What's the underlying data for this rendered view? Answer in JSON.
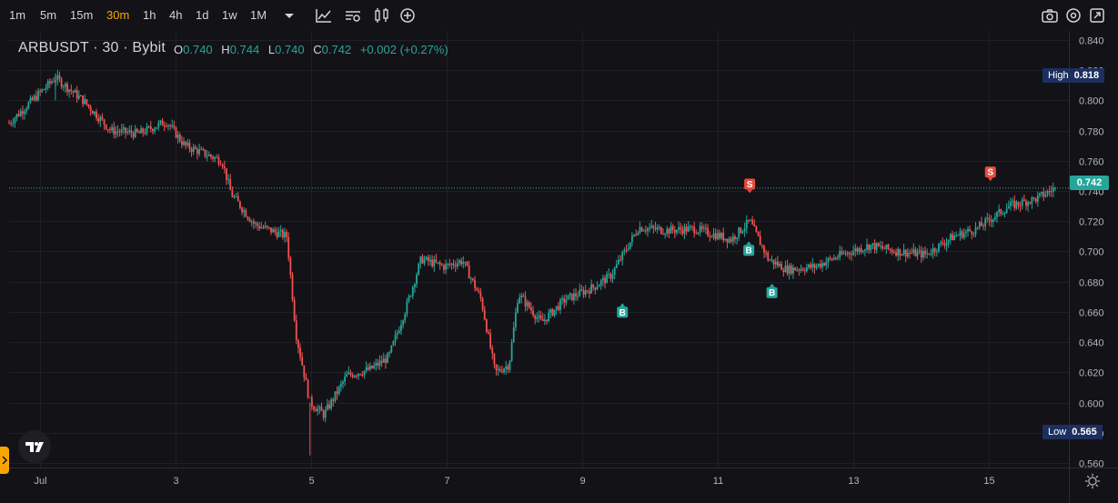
{
  "toolbar": {
    "timeframes": [
      "1m",
      "5m",
      "15m",
      "30m",
      "1h",
      "4h",
      "1d",
      "1w",
      "1M"
    ],
    "active_timeframe": "30m",
    "icons": [
      "dropdown-arrow-icon",
      "indicators-icon",
      "chart-settings-icon",
      "candles-icon",
      "add-icon",
      "camera-icon",
      "settings-icon",
      "fullscreen-icon"
    ]
  },
  "symbol": {
    "title": "ARBUSDT · 30 · Bybit"
  },
  "ohlc": {
    "o_label": "O",
    "o": "0.740",
    "h_label": "H",
    "h": "0.744",
    "l_label": "L",
    "l": "0.740",
    "c_label": "C",
    "c": "0.742",
    "change": "+0.002 (+0.27%)"
  },
  "badges": {
    "high_label": "High",
    "high_value": "0.818",
    "low_label": "Low",
    "low_value": "0.565",
    "last_value": "0.742"
  },
  "colors": {
    "up": "#26a69a",
    "down": "#ef5350",
    "accent": "#f7a600",
    "badge": "#1c2f5e"
  },
  "chart_data": {
    "type": "candlestick",
    "title": "ARBUSDT · 30 · Bybit",
    "x_ticks": [
      "Jul",
      "3",
      "5",
      "7",
      "9",
      "11",
      "13",
      "15"
    ],
    "y_ticks": [
      "0.840",
      "0.820",
      "0.800",
      "0.780",
      "0.760",
      "0.740",
      "0.720",
      "0.700",
      "0.680",
      "0.660",
      "0.640",
      "0.620",
      "0.600",
      "0.580",
      "0.560"
    ],
    "ylim": [
      0.557,
      0.846
    ],
    "grid": true,
    "high": 0.818,
    "low": 0.565,
    "last": 0.742,
    "price_path": [
      {
        "t": 0.0,
        "p": 0.785
      },
      {
        "t": 1.0,
        "p": 0.815
      },
      {
        "t": 1.6,
        "p": 0.8
      },
      {
        "t": 2.2,
        "p": 0.78
      },
      {
        "t": 2.8,
        "p": 0.778
      },
      {
        "t": 3.4,
        "p": 0.786
      },
      {
        "t": 3.8,
        "p": 0.77
      },
      {
        "t": 4.6,
        "p": 0.76
      },
      {
        "t": 4.8,
        "p": 0.738
      },
      {
        "t": 5.3,
        "p": 0.718
      },
      {
        "t": 6.0,
        "p": 0.71
      },
      {
        "t": 6.2,
        "p": 0.645
      },
      {
        "t": 6.5,
        "p": 0.6
      },
      {
        "t": 6.8,
        "p": 0.592
      },
      {
        "t": 7.3,
        "p": 0.618
      },
      {
        "t": 7.8,
        "p": 0.622
      },
      {
        "t": 8.2,
        "p": 0.63
      },
      {
        "t": 8.6,
        "p": 0.665
      },
      {
        "t": 8.9,
        "p": 0.695
      },
      {
        "t": 9.4,
        "p": 0.69
      },
      {
        "t": 9.8,
        "p": 0.694
      },
      {
        "t": 10.2,
        "p": 0.668
      },
      {
        "t": 10.5,
        "p": 0.62
      },
      {
        "t": 10.8,
        "p": 0.625
      },
      {
        "t": 11.0,
        "p": 0.672
      },
      {
        "t": 11.5,
        "p": 0.653
      },
      {
        "t": 12.0,
        "p": 0.668
      },
      {
        "t": 12.6,
        "p": 0.676
      },
      {
        "t": 13.0,
        "p": 0.684
      },
      {
        "t": 13.6,
        "p": 0.716
      },
      {
        "t": 14.2,
        "p": 0.714
      },
      {
        "t": 14.8,
        "p": 0.715
      },
      {
        "t": 15.6,
        "p": 0.708
      },
      {
        "t": 16.0,
        "p": 0.72
      },
      {
        "t": 16.4,
        "p": 0.695
      },
      {
        "t": 16.8,
        "p": 0.688
      },
      {
        "t": 17.4,
        "p": 0.69
      },
      {
        "t": 18.0,
        "p": 0.698
      },
      {
        "t": 18.6,
        "p": 0.704
      },
      {
        "t": 19.2,
        "p": 0.7
      },
      {
        "t": 19.8,
        "p": 0.698
      },
      {
        "t": 20.4,
        "p": 0.71
      },
      {
        "t": 20.9,
        "p": 0.715
      },
      {
        "t": 21.6,
        "p": 0.73
      },
      {
        "t": 22.2,
        "p": 0.735
      },
      {
        "t": 22.6,
        "p": 0.742
      }
    ],
    "markers": [
      {
        "label": "S",
        "t": 16.0,
        "p": 0.735,
        "side": "sell"
      },
      {
        "label": "B",
        "t": 15.98,
        "p": 0.708,
        "side": "buy"
      },
      {
        "label": "B",
        "t": 16.48,
        "p": 0.68,
        "side": "buy"
      },
      {
        "label": "B",
        "t": 13.25,
        "p": 0.667,
        "side": "buy"
      },
      {
        "label": "S",
        "t": 21.2,
        "p": 0.743,
        "side": "sell"
      }
    ]
  }
}
